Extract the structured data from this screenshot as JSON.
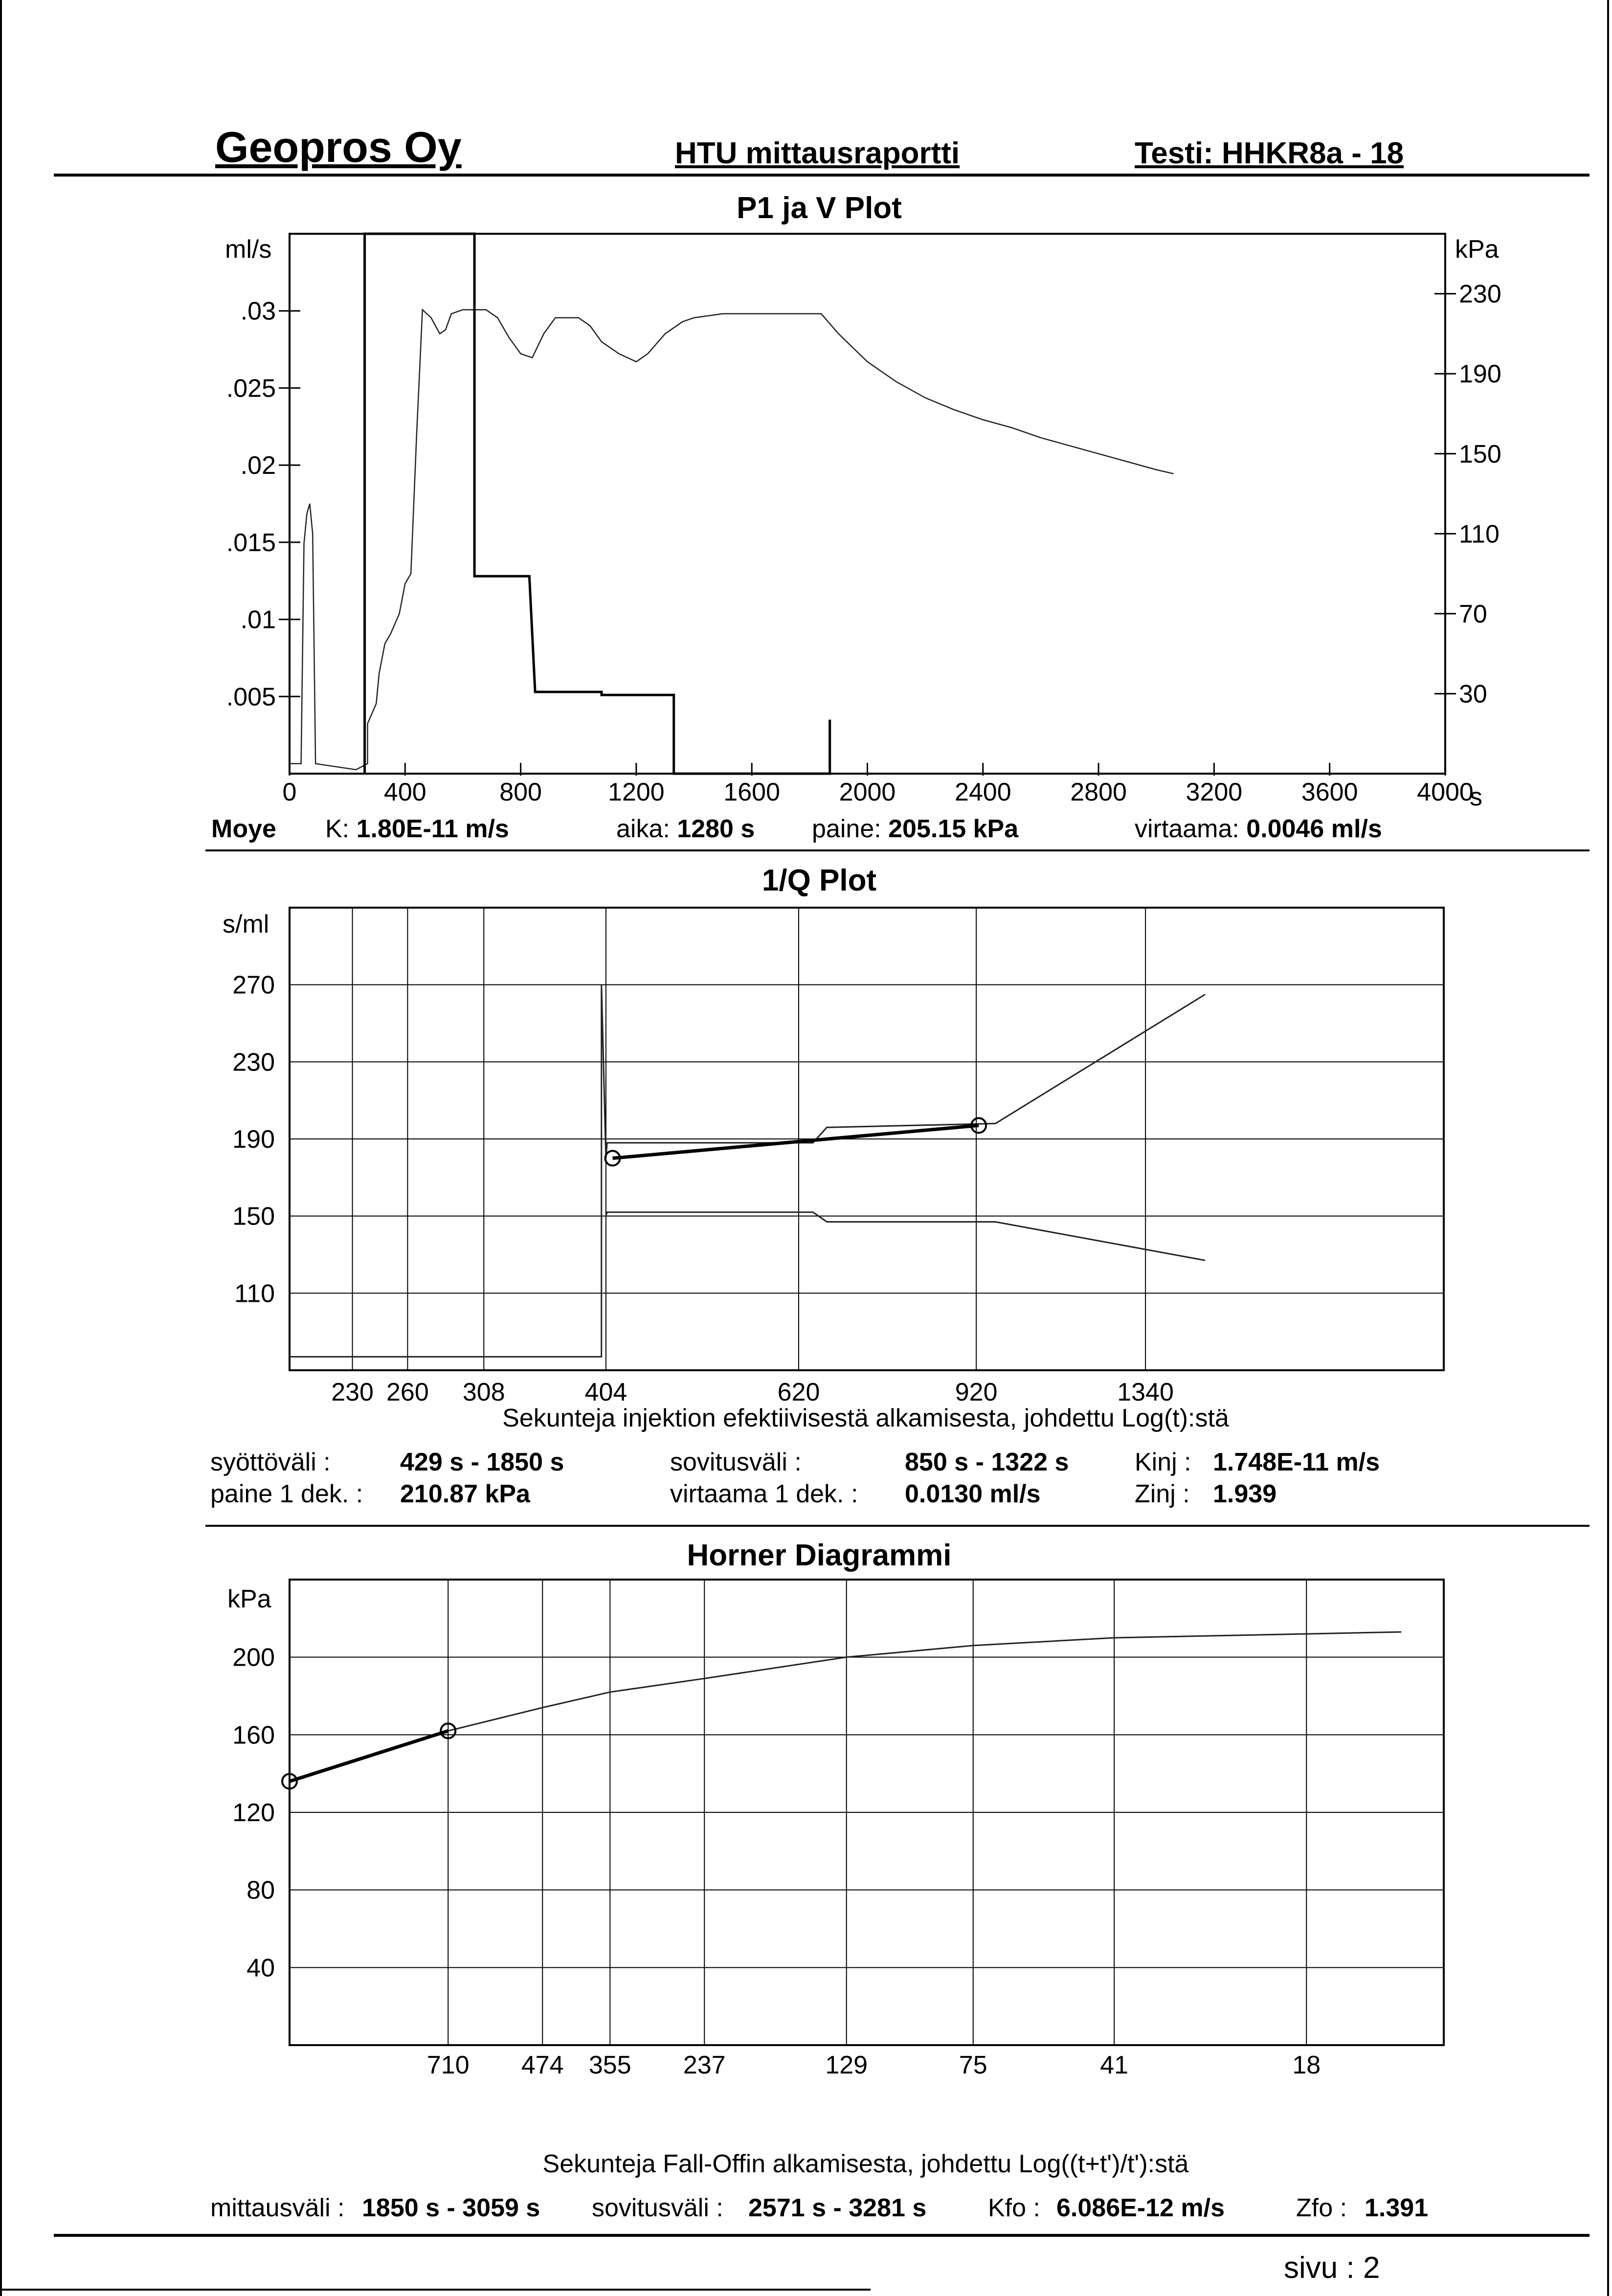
{
  "header": {
    "company": "Geopros Oy",
    "report": "HTU mittausraportti",
    "test": "Testi: HHKR8a - 18"
  },
  "footer": {
    "page_label": "sivu :",
    "page_number": "2"
  },
  "plot1": {
    "title": "P1 ja V Plot",
    "y_left_unit": "ml/s",
    "y_right_unit": "kPa",
    "x_unit": "s",
    "info": {
      "label": "Moye",
      "k_label": "K:",
      "k_value": "1.80E-11 m/s",
      "aika_label": "aika:",
      "aika_value": "1280 s",
      "paine_label": "paine:",
      "paine_value": "205.15 kPa",
      "virtaama_label": "virtaama:",
      "virtaama_value": "0.0046 ml/s"
    }
  },
  "plot2": {
    "title": "1/Q Plot",
    "y_unit": "s/ml",
    "xlabel": "Sekunteja injektion efektiivisestä alkamisesta, johdettu Log(t):stä",
    "info": {
      "syotto_label": "syöttöväli :",
      "syotto_value": "429 s - 1850 s",
      "sovitus_label": "sovitusväli :",
      "sovitus_value": "850 s - 1322 s",
      "kinj_label": "Kinj :",
      "kinj_value": "1.748E-11 m/s",
      "paine_label": "paine 1 dek. :",
      "paine_value": "210.87 kPa",
      "virtaama_label": "virtaama 1 dek. :",
      "virtaama_value": "0.0130 ml/s",
      "zinj_label": "Zinj :",
      "zinj_value": "1.939"
    }
  },
  "plot3": {
    "title": "Horner Diagrammi",
    "y_unit": "kPa",
    "xlabel": "Sekunteja Fall-Offin alkamisesta, johdettu Log((t+t')/t'):stä",
    "info": {
      "mittaus_label": "mittausväli :",
      "mittaus_value": "1850 s - 3059 s",
      "sovitus_label": "sovitusväli :",
      "sovitus_value": "2571 s - 3281 s",
      "kfo_label": "Kfo :",
      "kfo_value": "6.086E-12 m/s",
      "zfo_label": "Zfo :",
      "zfo_value": "1.391"
    }
  },
  "chart_data": [
    {
      "type": "line",
      "title": "P1 ja V Plot",
      "xlim": [
        0,
        4000
      ],
      "x_ticks": [
        "0",
        "400",
        "800",
        "1200",
        "1600",
        "2000",
        "2400",
        "2800",
        "3200",
        "3600",
        "4000"
      ],
      "y_left": {
        "label": "ml/s",
        "ticks": [
          ".005",
          ".01",
          ".015",
          ".02",
          ".025",
          ".03"
        ],
        "range": [
          0,
          0.035
        ]
      },
      "y_right": {
        "label": "kPa",
        "ticks": [
          "30",
          "70",
          "110",
          "150",
          "190",
          "230"
        ],
        "range": [
          -10,
          260
        ]
      },
      "series": [
        {
          "axis": "right",
          "points": [
            [
              0,
              -5
            ],
            [
              40,
              -5
            ],
            [
              50,
              105
            ],
            [
              60,
              120
            ],
            [
              70,
              125
            ],
            [
              80,
              110
            ],
            [
              90,
              -5
            ],
            [
              230,
              -8
            ],
            [
              270,
              -5
            ],
            [
              270,
              15
            ],
            [
              300,
              25
            ],
            [
              310,
              40
            ],
            [
              330,
              55
            ],
            [
              350,
              60
            ],
            [
              380,
              70
            ],
            [
              400,
              85
            ],
            [
              420,
              90
            ],
            [
              440,
              160
            ],
            [
              460,
              222
            ],
            [
              490,
              218
            ],
            [
              520,
              210
            ],
            [
              540,
              212
            ],
            [
              560,
              220
            ],
            [
              600,
              222
            ],
            [
              680,
              222
            ],
            [
              720,
              218
            ],
            [
              760,
              208
            ],
            [
              800,
              200
            ],
            [
              840,
              198
            ],
            [
              880,
              210
            ],
            [
              920,
              218
            ],
            [
              1000,
              218
            ],
            [
              1040,
              214
            ],
            [
              1080,
              206
            ],
            [
              1140,
              200
            ],
            [
              1200,
              196
            ],
            [
              1240,
              200
            ],
            [
              1300,
              210
            ],
            [
              1360,
              216
            ],
            [
              1400,
              218
            ],
            [
              1500,
              220
            ],
            [
              1700,
              220
            ],
            [
              1840,
              220
            ],
            [
              1900,
              210
            ],
            [
              2000,
              196
            ],
            [
              2100,
              186
            ],
            [
              2200,
              178
            ],
            [
              2300,
              172
            ],
            [
              2400,
              167
            ],
            [
              2500,
              163
            ],
            [
              2600,
              158
            ],
            [
              2700,
              154
            ],
            [
              2800,
              150
            ],
            [
              2900,
              146
            ],
            [
              3000,
              142
            ],
            [
              3060,
              140
            ]
          ]
        },
        {
          "axis": "left",
          "points": [
            [
              260,
              0
            ],
            [
              260,
              0.0375
            ],
            [
              640,
              0.0375
            ],
            [
              640,
              0.0128
            ],
            [
              830,
              0.0128
            ],
            [
              850,
              0.0053
            ],
            [
              1080,
              0.0053
            ],
            [
              1080,
              0.0051
            ],
            [
              1330,
              0.0051
            ],
            [
              1330,
              0
            ],
            [
              1870,
              0
            ],
            [
              1870,
              0.0035
            ],
            [
              1870,
              0
            ]
          ]
        }
      ]
    },
    {
      "type": "line",
      "title": "1/Q Plot",
      "y_unit": "s/ml",
      "y_ticks": [
        "110",
        "150",
        "190",
        "230",
        "270"
      ],
      "ylim": [
        70,
        310
      ],
      "x_ticks": [
        "230",
        "260",
        "308",
        "404",
        "620",
        "920",
        "1340"
      ],
      "x_scale": "log",
      "series": [
        {
          "name": "measured",
          "points": [
            [
              200,
              77
            ],
            [
              400,
              77
            ],
            [
              400,
              270
            ],
            [
              404,
              180
            ],
            [
              405,
              188
            ],
            [
              640,
              188
            ],
            [
              660,
              196
            ],
            [
              960,
              198
            ],
            [
              1530,
              265
            ]
          ]
        },
        {
          "name": "lower",
          "points": [
            [
              404,
              150
            ],
            [
              405,
              152
            ],
            [
              640,
              152
            ],
            [
              660,
              147
            ],
            [
              960,
              147
            ],
            [
              1530,
              127
            ]
          ]
        },
        {
          "name": "fit",
          "points": [
            [
              410,
              180
            ],
            [
              925,
              197
            ]
          ]
        }
      ],
      "markers": [
        [
          410,
          180
        ],
        [
          925,
          197
        ]
      ]
    },
    {
      "type": "line",
      "title": "Horner Diagrammi",
      "y_unit": "kPa",
      "y_ticks": [
        "40",
        "80",
        "120",
        "160",
        "200"
      ],
      "ylim": [
        0,
        240
      ],
      "x_ticks": [
        "710",
        "474",
        "355",
        "237",
        "129",
        "75",
        "41",
        "18"
      ],
      "x_scale": "log",
      "series": [
        {
          "name": "pressure",
          "points": [
            [
              1400,
              136
            ],
            [
              710,
              162
            ],
            [
              474,
              174
            ],
            [
              355,
              182
            ],
            [
              237,
              189
            ],
            [
              129,
              200
            ],
            [
              75,
              206
            ],
            [
              41,
              210
            ],
            [
              18,
              212
            ],
            [
              12,
              213
            ]
          ]
        },
        {
          "name": "fit",
          "points": [
            [
              1400,
              136
            ],
            [
              710,
              162
            ]
          ]
        }
      ],
      "markers": [
        [
          1400,
          136
        ],
        [
          710,
          162
        ]
      ]
    }
  ]
}
